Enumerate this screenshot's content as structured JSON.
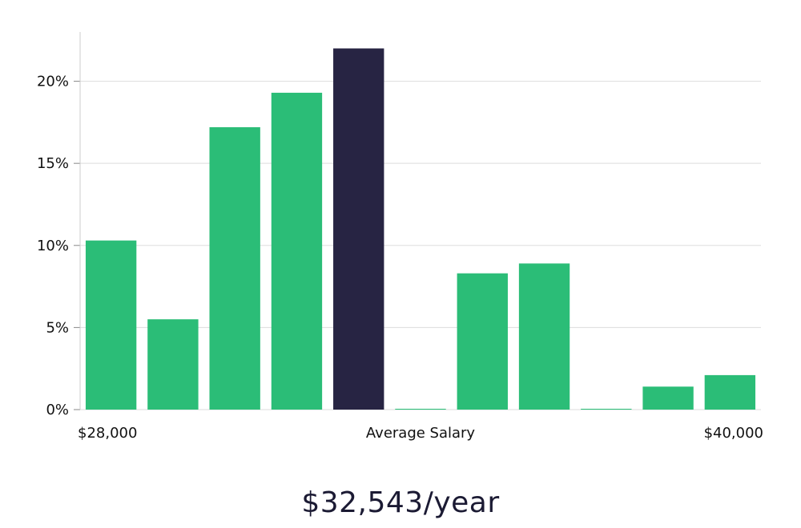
{
  "chart_data": {
    "type": "bar",
    "categories": [
      "1",
      "2",
      "3",
      "4",
      "5",
      "6",
      "7",
      "8",
      "9",
      "10",
      "11"
    ],
    "values": [
      10.3,
      5.5,
      17.2,
      19.3,
      22.0,
      0.05,
      8.3,
      8.9,
      0.05,
      1.4,
      2.1
    ],
    "highlight_index": 4,
    "xlabel": "Average Salary",
    "x_min_label": "$28,000",
    "x_max_label": "$40,000",
    "ylim": [
      0,
      23
    ],
    "yticks": [
      0,
      5,
      10,
      15,
      20
    ],
    "ytick_labels": [
      "0%",
      "5%",
      "10%",
      "15%",
      "20%"
    ],
    "grid": true,
    "colors": {
      "bar": "#2bbd77",
      "highlight": "#272443",
      "grid": "#dddddd",
      "axis": "#cccccc"
    }
  },
  "summary": {
    "salary_text": "$32,543/year"
  }
}
